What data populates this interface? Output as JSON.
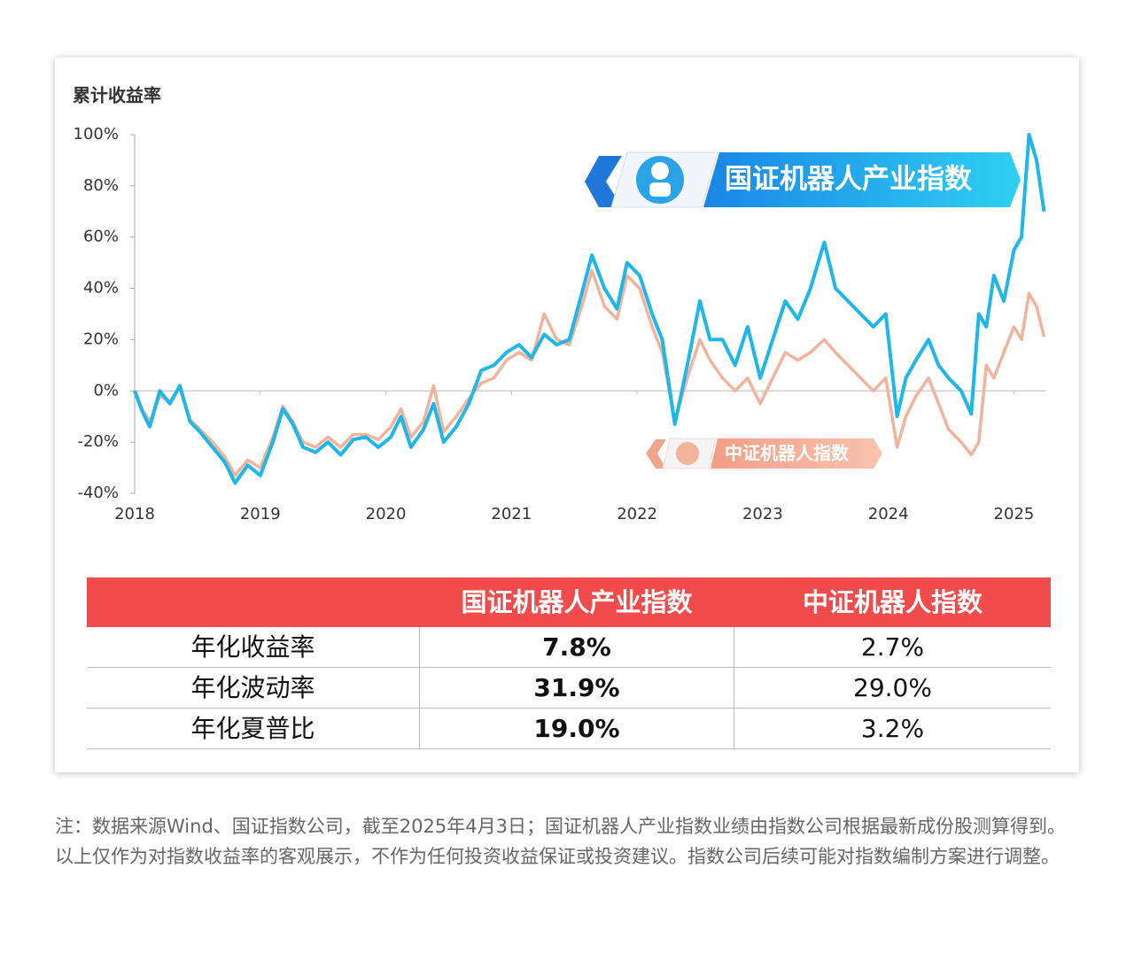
{
  "chart_data": {
    "type": "line",
    "ylabel": "累计收益率",
    "x": [
      2018.0,
      2018.06,
      2018.12,
      2018.2,
      2018.28,
      2018.36,
      2018.44,
      2018.52,
      2018.62,
      2018.72,
      2018.8,
      2018.9,
      2019.0,
      2019.1,
      2019.18,
      2019.26,
      2019.34,
      2019.44,
      2019.54,
      2019.64,
      2019.74,
      2019.84,
      2019.94,
      2020.04,
      2020.12,
      2020.2,
      2020.3,
      2020.38,
      2020.46,
      2020.56,
      2020.66,
      2020.76,
      2020.86,
      2020.96,
      2021.06,
      2021.16,
      2021.26,
      2021.36,
      2021.46,
      2021.56,
      2021.64,
      2021.74,
      2021.84,
      2021.92,
      2022.02,
      2022.12,
      2022.2,
      2022.3,
      2022.4,
      2022.5,
      2022.58,
      2022.68,
      2022.78,
      2022.88,
      2022.98,
      2023.08,
      2023.18,
      2023.28,
      2023.38,
      2023.49,
      2023.58,
      2023.68,
      2023.78,
      2023.88,
      2023.98,
      2024.07,
      2024.14,
      2024.22,
      2024.32,
      2024.4,
      2024.48,
      2024.58,
      2024.66,
      2024.72,
      2024.78,
      2024.84,
      2024.92,
      2025.0,
      2025.06,
      2025.12,
      2025.18,
      2025.24
    ],
    "series": [
      {
        "name": "国证机器人产业指数",
        "color": "#1fb6ea",
        "values": [
          0,
          -8,
          -14,
          0,
          -5,
          2,
          -12,
          -16,
          -22,
          -28,
          -36,
          -29,
          -33,
          -20,
          -7,
          -13,
          -22,
          -24,
          -20,
          -25,
          -19,
          -18,
          -22,
          -18,
          -10,
          -22,
          -15,
          -5,
          -20,
          -14,
          -5,
          8,
          10,
          15,
          18,
          13,
          22,
          18,
          20,
          38,
          53,
          40,
          32,
          50,
          45,
          30,
          20,
          -13,
          10,
          35,
          20,
          20,
          10,
          25,
          5,
          20,
          35,
          28,
          40,
          58,
          40,
          35,
          30,
          25,
          30,
          -10,
          5,
          12,
          20,
          10,
          5,
          0,
          -9,
          30,
          25,
          45,
          35,
          55,
          60,
          100,
          90,
          70
        ]
      },
      {
        "name": "中证机器人指数",
        "color": "#f2b39c",
        "values": [
          0,
          -7,
          -12,
          -2,
          -4,
          1,
          -11,
          -15,
          -20,
          -26,
          -33,
          -27,
          -30,
          -18,
          -6,
          -12,
          -20,
          -22,
          -18,
          -22,
          -17,
          -17,
          -19,
          -14,
          -7,
          -18,
          -12,
          2,
          -16,
          -10,
          -3,
          3,
          5,
          12,
          15,
          12,
          30,
          20,
          18,
          33,
          47,
          33,
          28,
          45,
          40,
          25,
          15,
          -12,
          5,
          20,
          12,
          5,
          0,
          5,
          -5,
          5,
          15,
          12,
          15,
          20,
          15,
          10,
          5,
          0,
          5,
          -22,
          -10,
          -2,
          5,
          -5,
          -15,
          -20,
          -25,
          -20,
          10,
          5,
          15,
          25,
          20,
          38,
          33,
          21
        ]
      }
    ],
    "xlim": [
      2018,
      2025.3
    ],
    "xticks": [
      2018,
      2019,
      2020,
      2021,
      2022,
      2023,
      2024,
      2025
    ],
    "ylim": [
      -40,
      100
    ],
    "yticks": [
      {
        "value": -40,
        "label": "-40%"
      },
      {
        "value": -20,
        "label": "-20%"
      },
      {
        "value": 0,
        "label": "0%"
      },
      {
        "value": 20,
        "label": "20%"
      },
      {
        "value": 40,
        "label": "40%"
      },
      {
        "value": 60,
        "label": "60%"
      },
      {
        "value": 80,
        "label": "80%"
      },
      {
        "value": 100,
        "label": "100%"
      }
    ],
    "grid": false
  },
  "table": {
    "header": [
      "国证机器人产业指数",
      "中证机器人指数"
    ],
    "rows": [
      [
        "年化收益率",
        "7.8%",
        "2.7%"
      ],
      [
        "年化波动率",
        "31.9%",
        "29.0%"
      ],
      [
        "年化夏普比",
        "19.0%",
        "3.2%"
      ]
    ]
  },
  "footnote": "注：数据来源Wind、国证指数公司，截至2025年4月3日；国证机器人产业指数业绩由指数公司根据最新成份股测算得到。以上仅作为对指数收益率的客观展示，不作为任何投资收益保证或投资建议。指数公司后续可能对指数编制方案进行调整。"
}
